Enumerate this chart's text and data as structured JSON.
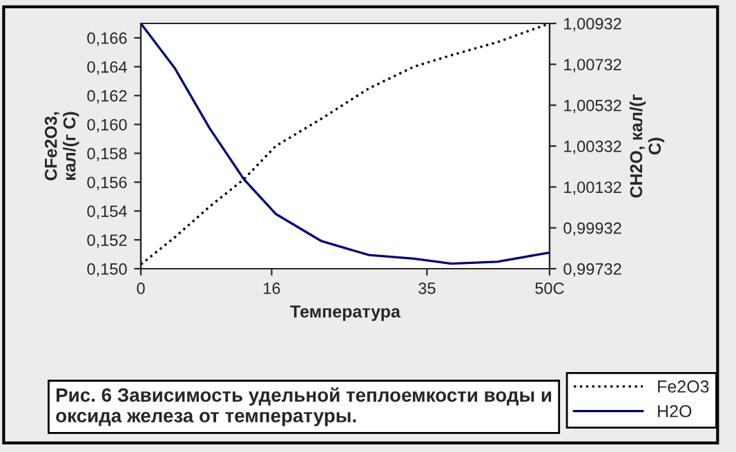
{
  "chart_data": {
    "type": "line",
    "title": "Рис. 6 Зависимость удельной теплоемкости воды и оксида железа от температуры.",
    "xlabel": "Температура",
    "ylabel": "CFe2O3,\nкал/(г С)",
    "y2label": "CH2O, кал/(г\nС)",
    "x": [
      0,
      4.2,
      8.4,
      12.6,
      16.5,
      22.1,
      27.9,
      33.4,
      38,
      43.6,
      50
    ],
    "series": [
      {
        "name": "Fe2O3",
        "color": "#000000",
        "line_style": "dotted",
        "axis": "y",
        "values": [
          0.1503,
          0.1522,
          0.1543,
          0.1562,
          0.1585,
          0.1604,
          0.1625,
          0.164,
          0.1648,
          0.1657,
          0.167
        ]
      },
      {
        "name": "H2O",
        "color": "#000080",
        "line_style": "solid",
        "axis": "y2",
        "values": [
          1.00932,
          1.0071,
          1.0042,
          1.0017,
          1.0,
          0.99867,
          0.99799,
          0.99781,
          0.99757,
          0.99766,
          0.99811
        ]
      }
    ],
    "xlim": [
      0,
      50
    ],
    "xticks": [
      0,
      16,
      35,
      {
        "value": 50,
        "label": "50C"
      }
    ],
    "ylim": [
      0.15,
      0.167
    ],
    "yticks": [
      {
        "value": 0.15,
        "label": "0,150"
      },
      {
        "value": 0.152,
        "label": "0,152"
      },
      {
        "value": 0.154,
        "label": "0,154"
      },
      {
        "value": 0.156,
        "label": "0,156"
      },
      {
        "value": 0.158,
        "label": "0,158"
      },
      {
        "value": 0.16,
        "label": "0,160"
      },
      {
        "value": 0.162,
        "label": "0,162"
      },
      {
        "value": 0.164,
        "label": "0,164"
      },
      {
        "value": 0.166,
        "label": "0,166"
      }
    ],
    "y2lim": [
      0.99732,
      1.00932
    ],
    "y2ticks": [
      {
        "value": 0.99732,
        "label": "0,99732"
      },
      {
        "value": 0.99932,
        "label": "0,99932"
      },
      {
        "value": 1.00132,
        "label": "1,00132"
      },
      {
        "value": 1.00332,
        "label": "1,00332"
      },
      {
        "value": 1.00532,
        "label": "1,00532"
      },
      {
        "value": 1.00732,
        "label": "1,00732"
      },
      {
        "value": 1.00932,
        "label": "1,00932"
      }
    ],
    "legend": "bottom right",
    "grid": false
  }
}
